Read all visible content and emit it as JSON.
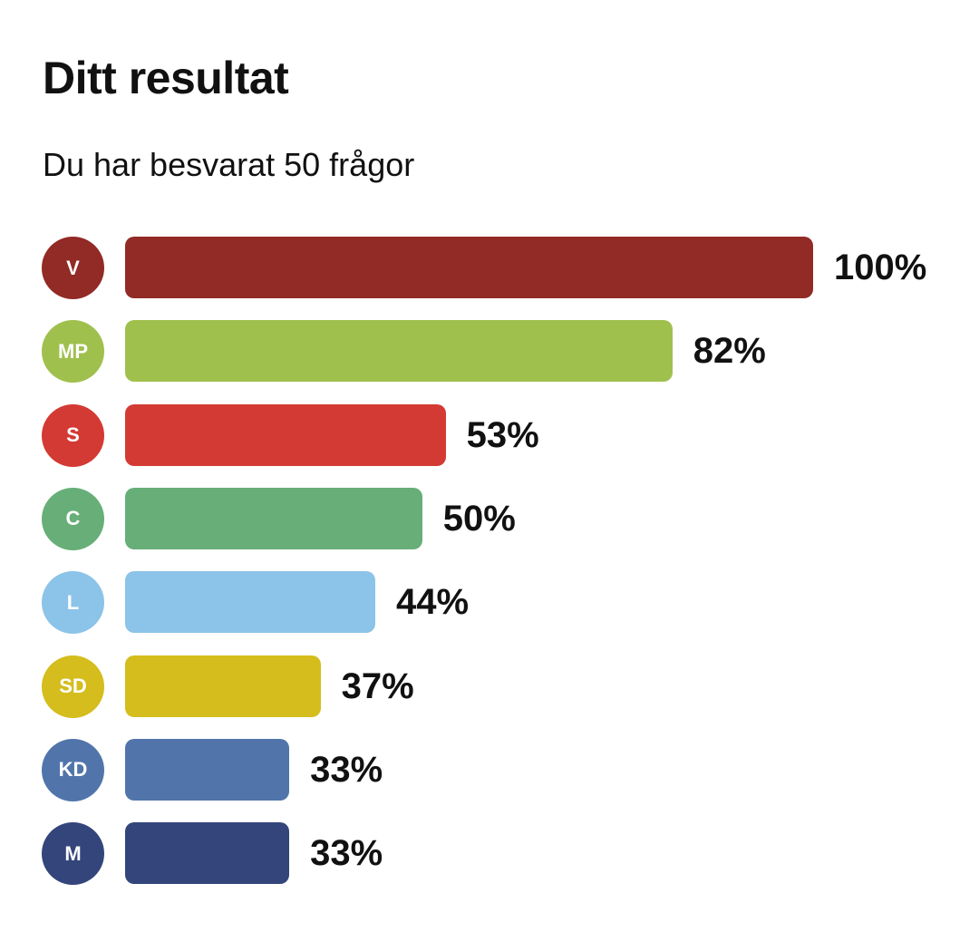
{
  "header": {
    "title": "Ditt resultat",
    "subtitle": "Du har besvarat 50 frågor"
  },
  "chart_data": {
    "type": "bar",
    "orientation": "horizontal",
    "title": "Ditt resultat",
    "subtitle": "Du har besvarat 50 frågor",
    "xlabel": "",
    "ylabel": "",
    "grid": false,
    "legend": "none",
    "categories": [
      "V",
      "MP",
      "S",
      "C",
      "L",
      "SD",
      "KD",
      "M"
    ],
    "values": [
      100,
      82,
      53,
      50,
      44,
      37,
      33,
      33
    ],
    "labels": [
      "100%",
      "82%",
      "53%",
      "50%",
      "44%",
      "37%",
      "33%",
      "33%"
    ],
    "unit": "%",
    "colors": [
      "#922a25",
      "#a0c04e",
      "#d33a33",
      "#67ae78",
      "#8cc3e8",
      "#d4bd1c",
      "#5175ab",
      "#33457a"
    ],
    "xlim": [
      0,
      100
    ]
  }
}
